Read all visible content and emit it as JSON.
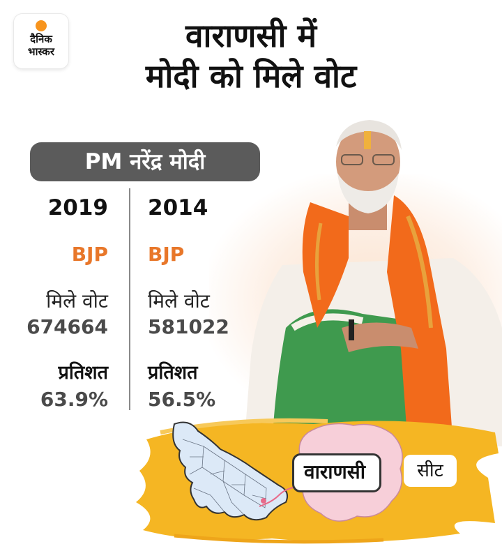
{
  "logo": {
    "line1": "दैनिक",
    "line2": "भास्कर"
  },
  "headline": {
    "line1": "वाराणसी में",
    "line2": "मोदी को मिले वोट"
  },
  "candidate": {
    "name": "PM नरेंद्र मोदी"
  },
  "years": [
    {
      "year": "2019",
      "party": "BJP",
      "votes_label": "मिले वोट",
      "votes": "674664",
      "percent_label": "प्रतिशत",
      "percent": "63.9%"
    },
    {
      "year": "2014",
      "party": "BJP",
      "votes_label": "मिले वोट",
      "votes": "581022",
      "percent_label": "प्रतिशत",
      "percent": "56.5%"
    }
  ],
  "map": {
    "district_label": "वाराणसी",
    "seat_label": "सीट"
  },
  "colors": {
    "accent_orange": "#e8772a",
    "pill_gray": "#5b5b5b",
    "map_yellow": "#f5b623",
    "map_blue": "#dce9f7",
    "district_pink": "#f7cfd9",
    "brand_orange": "#f7941d"
  },
  "icons": {
    "brand": "dainik-bhaskar-logo",
    "photo": "narendra-modi-photo",
    "map": "uttar-pradesh-map"
  }
}
